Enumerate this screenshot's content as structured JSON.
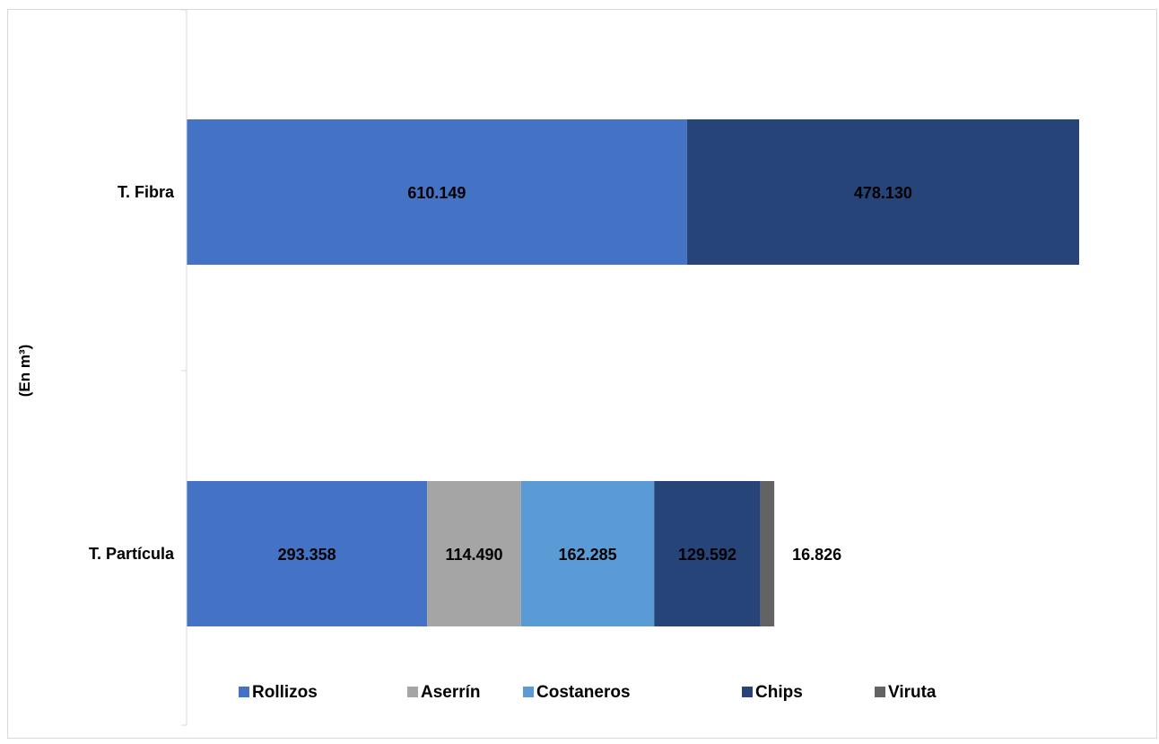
{
  "chart_data": {
    "type": "bar",
    "orientation": "horizontal",
    "stacked": true,
    "categories": [
      "T. Fibra",
      "T. Partícula"
    ],
    "ylabel": "(En m³)",
    "xlabel": "",
    "title": "",
    "xlim": [
      0,
      1100000
    ],
    "grid": false,
    "legend": "bottom",
    "series": [
      {
        "name": "Rollizos",
        "color": "#4472c4",
        "values": [
          610149,
          293358
        ],
        "labels": [
          "610.149",
          "293.358"
        ]
      },
      {
        "name": "Aserrín",
        "color": "#a5a5a5",
        "values": [
          0,
          114490
        ],
        "labels": [
          "",
          "114.490"
        ]
      },
      {
        "name": "Costaneros",
        "color": "#5b9bd5",
        "values": [
          0,
          162285
        ],
        "labels": [
          "",
          "162.285"
        ]
      },
      {
        "name": "Chips",
        "color": "#264478",
        "values": [
          478130,
          129592
        ],
        "labels": [
          "478.130",
          "129.592"
        ]
      },
      {
        "name": "Viruta",
        "color": "#636363",
        "values": [
          0,
          16826
        ],
        "labels": [
          "",
          "16.826"
        ]
      }
    ]
  }
}
